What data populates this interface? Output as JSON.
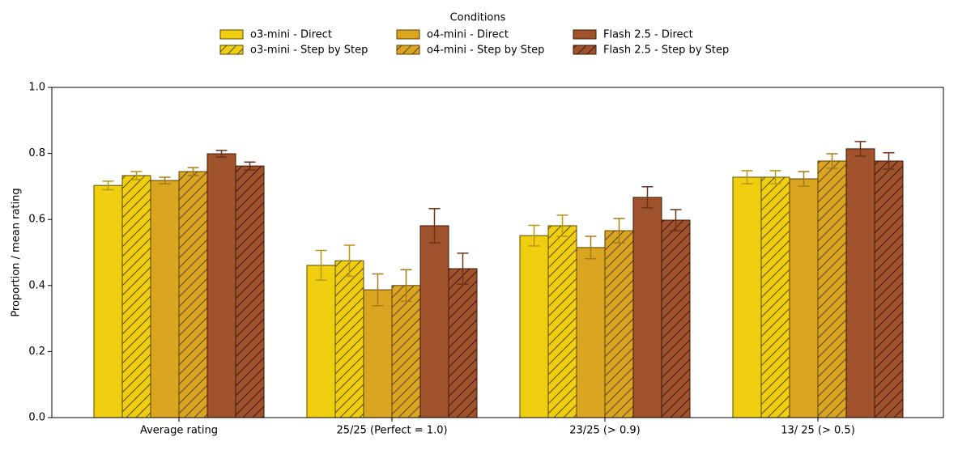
{
  "chart_data": {
    "type": "bar",
    "y_label": "Proportion / mean rating",
    "legend_title": "Conditions",
    "categories": [
      "Average rating",
      "25/25 (Perfect = 1.0)",
      "23/25 (> 0.9)",
      "13/ 25 (> 0.5)"
    ],
    "ylim": [
      0,
      1
    ],
    "yticks": [
      {
        "value": 0,
        "label": "0.0"
      },
      0.2,
      0.4,
      0.6,
      0.8,
      {
        "value": 1,
        "label": "1.0"
      }
    ],
    "series": [
      {
        "name": "o3-mini - Direct",
        "color": "#efcf0f",
        "edgecolor": "#5a4a00",
        "errorcolor": "#b8960e",
        "hatch": false,
        "values": [
          0.703,
          0.461,
          0.551,
          0.728
        ],
        "errors": [
          0.013,
          0.045,
          0.031,
          0.02
        ]
      },
      {
        "name": "o3-mini - Step by Step",
        "color": "#efcf0f",
        "edgecolor": "#5a4a00",
        "errorcolor": "#b8960e",
        "hatch": true,
        "values": [
          0.733,
          0.475,
          0.581,
          0.728
        ],
        "errors": [
          0.012,
          0.047,
          0.032,
          0.02
        ]
      },
      {
        "name": "o4-mini - Direct",
        "color": "#daa520",
        "edgecolor": "#5a4000",
        "errorcolor": "#a67c17",
        "hatch": false,
        "values": [
          0.718,
          0.387,
          0.515,
          0.723
        ],
        "errors": [
          0.01,
          0.048,
          0.034,
          0.022
        ]
      },
      {
        "name": "o4-mini - Step by Step",
        "color": "#daa520",
        "edgecolor": "#5a4000",
        "errorcolor": "#a67c17",
        "hatch": true,
        "values": [
          0.745,
          0.4,
          0.566,
          0.777
        ],
        "errors": [
          0.012,
          0.048,
          0.037,
          0.022
        ]
      },
      {
        "name": "Flash 2.5 - Direct",
        "color": "#a0522d",
        "edgecolor": "#3a1a08",
        "errorcolor": "#6b3318",
        "hatch": false,
        "values": [
          0.799,
          0.581,
          0.667,
          0.814
        ],
        "errors": [
          0.01,
          0.052,
          0.032,
          0.022
        ]
      },
      {
        "name": "Flash 2.5 - Step by Step",
        "color": "#a0522d",
        "edgecolor": "#3a1a08",
        "errorcolor": "#6b3318",
        "hatch": true,
        "values": [
          0.762,
          0.451,
          0.598,
          0.777
        ],
        "errors": [
          0.012,
          0.047,
          0.032,
          0.025
        ]
      }
    ]
  }
}
